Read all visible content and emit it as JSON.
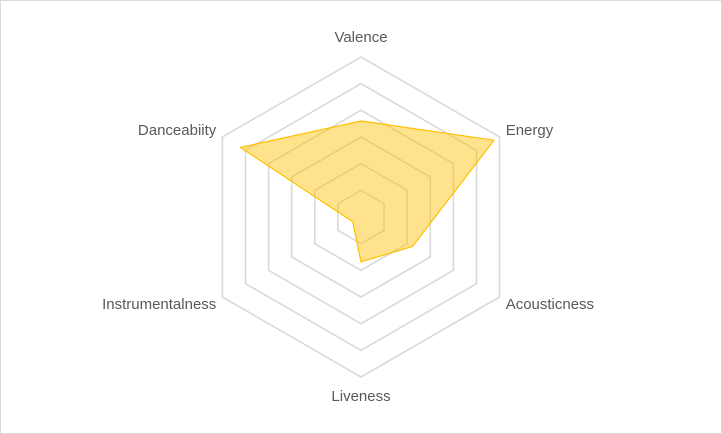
{
  "chart_data": {
    "type": "radar",
    "categories": [
      "Valence",
      "Energy",
      "Acousticness",
      "Liveness",
      "Instrumentalness",
      "Danceabiity"
    ],
    "series": [
      {
        "values": [
          0.6,
          0.96,
          0.37,
          0.28,
          0.06,
          0.87
        ],
        "color": "#ffc000"
      }
    ],
    "rlim": [
      0,
      1
    ],
    "grid_levels": 6,
    "grid": true,
    "fill_opacity": 0.45,
    "gridline_color": "#d9d9d9",
    "label_color": "#595959"
  }
}
